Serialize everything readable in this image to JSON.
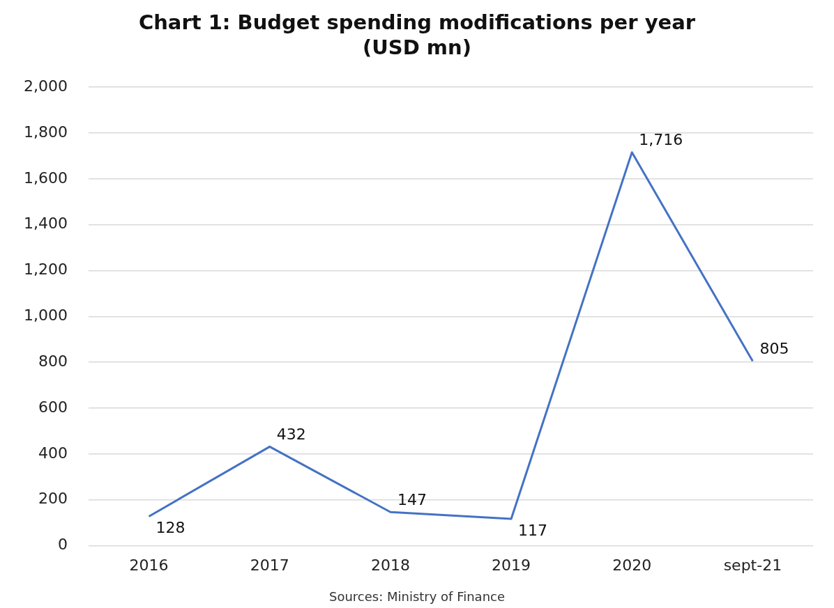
{
  "chart_data": {
    "type": "line",
    "title": "Chart 1: Budget spending modifications per year",
    "subtitle": "(USD mn)",
    "categories": [
      "2016",
      "2017",
      "2018",
      "2019",
      "2020",
      "sept-21"
    ],
    "series": [
      {
        "color": "#4472c4",
        "values": [
          128,
          432,
          147,
          117,
          1716,
          805
        ]
      }
    ],
    "value_labels": [
      "128",
      "432",
      "147",
      "117",
      "1,716",
      "805"
    ],
    "ylim": [
      0,
      2000
    ],
    "yticks": [
      {
        "value": 0,
        "label": "0"
      },
      {
        "value": 200,
        "label": "200"
      },
      {
        "value": 400,
        "label": "400"
      },
      {
        "value": 600,
        "label": "600"
      },
      {
        "value": 800,
        "label": "800"
      },
      {
        "value": 1000,
        "label": "1,000"
      },
      {
        "value": 1200,
        "label": "1,200"
      },
      {
        "value": 1400,
        "label": "1,400"
      },
      {
        "value": 1600,
        "label": "1,600"
      },
      {
        "value": 1800,
        "label": "1,800"
      },
      {
        "value": 2000,
        "label": "2,000"
      }
    ],
    "grid": "y",
    "legend": false,
    "marker": "none",
    "line_style": "solid",
    "annotations": [
      "Sources: Ministry of Finance"
    ]
  }
}
